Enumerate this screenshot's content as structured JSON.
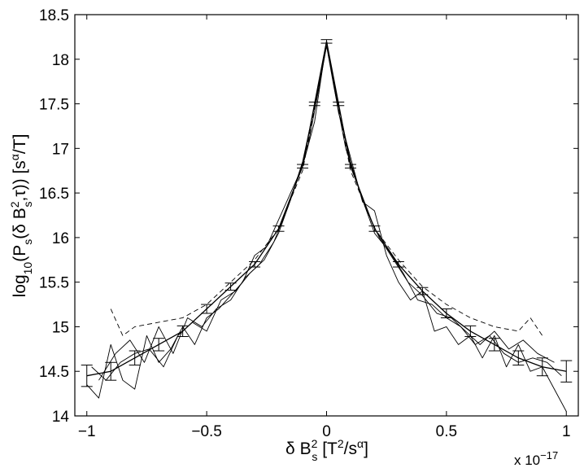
{
  "chart_data": {
    "type": "line",
    "title": "",
    "xlabel": "δ B_s^2 [T^2/s^α]",
    "ylabel": "log10(P_s(δ B_s^2, τ)) [s^α/T]",
    "x_scale_label": "x 10^-17",
    "x_scale_factor": 1e-17,
    "xlim": [
      -1.05,
      1.05
    ],
    "ylim": [
      14,
      18.5
    ],
    "grid": false,
    "legend": "none",
    "xticks": [
      -1,
      -0.5,
      0,
      0.5,
      1
    ],
    "xtick_labels": [
      "−1",
      "−0.5",
      "0",
      "0.5",
      "1"
    ],
    "yticks": [
      14,
      14.5,
      15,
      15.5,
      16,
      16.5,
      17,
      17.5,
      18,
      18.5
    ],
    "ytick_labels": [
      "14",
      "14.5",
      "15",
      "15.5",
      "16",
      "16.5",
      "17",
      "17.5",
      "18",
      "18.5"
    ],
    "series": [
      {
        "style": "solid-errorbar",
        "x": [
          -1.0,
          -0.9,
          -0.8,
          -0.7,
          -0.6,
          -0.5,
          -0.4,
          -0.3,
          -0.2,
          -0.1,
          -0.05,
          0.0,
          0.05,
          0.1,
          0.2,
          0.3,
          0.4,
          0.5,
          0.6,
          0.7,
          0.8,
          0.9,
          1.0
        ],
        "y": [
          14.45,
          14.5,
          14.65,
          14.8,
          14.95,
          15.2,
          15.45,
          15.7,
          16.1,
          16.8,
          17.5,
          18.2,
          17.5,
          16.8,
          16.1,
          15.7,
          15.4,
          15.15,
          14.95,
          14.8,
          14.65,
          14.55,
          14.5
        ],
        "err": [
          0.12,
          0.1,
          0.08,
          0.07,
          0.06,
          0.05,
          0.04,
          0.03,
          0.03,
          0.02,
          0.02,
          0.02,
          0.02,
          0.02,
          0.03,
          0.03,
          0.04,
          0.05,
          0.06,
          0.07,
          0.08,
          0.1,
          0.12
        ]
      },
      {
        "style": "solid-noisy",
        "x": [
          -1.0,
          -0.95,
          -0.9,
          -0.85,
          -0.8,
          -0.75,
          -0.7,
          -0.65,
          -0.6,
          -0.55,
          -0.5,
          -0.45,
          -0.4,
          -0.35,
          -0.3,
          -0.25,
          -0.2,
          -0.15,
          -0.1,
          -0.05,
          0.0,
          0.05,
          0.1,
          0.15,
          0.2,
          0.25,
          0.3,
          0.35,
          0.4,
          0.45,
          0.5,
          0.55,
          0.6,
          0.65,
          0.7,
          0.75,
          0.8,
          0.85,
          0.9,
          0.95,
          1.0
        ],
        "y": [
          14.35,
          14.2,
          14.8,
          14.4,
          14.3,
          14.9,
          14.6,
          14.75,
          15.0,
          14.8,
          15.1,
          15.2,
          15.35,
          15.5,
          15.8,
          15.9,
          16.2,
          16.5,
          16.8,
          17.3,
          18.2,
          17.4,
          16.9,
          16.4,
          16.3,
          15.8,
          15.5,
          15.3,
          15.4,
          14.95,
          15.0,
          14.8,
          14.9,
          14.65,
          14.9,
          14.55,
          14.8,
          14.5,
          14.55,
          14.3,
          14.05
        ]
      },
      {
        "style": "solid-noisy",
        "x": [
          -0.98,
          -0.92,
          -0.86,
          -0.8,
          -0.74,
          -0.68,
          -0.62,
          -0.56,
          -0.5,
          -0.44,
          -0.38,
          -0.32,
          -0.26,
          -0.2,
          -0.14,
          -0.08,
          -0.03,
          0.0,
          0.03,
          0.08,
          0.14,
          0.2,
          0.26,
          0.32,
          0.38,
          0.44,
          0.5,
          0.56,
          0.62,
          0.68,
          0.74,
          0.8,
          0.86,
          0.92,
          0.98
        ],
        "y": [
          14.55,
          14.4,
          14.6,
          14.7,
          14.75,
          14.55,
          14.9,
          15.05,
          14.95,
          15.3,
          15.4,
          15.6,
          15.75,
          16.05,
          16.5,
          17.0,
          17.7,
          18.15,
          17.7,
          17.0,
          16.5,
          16.05,
          15.85,
          15.6,
          15.3,
          15.25,
          15.1,
          15.0,
          14.8,
          14.9,
          14.7,
          14.6,
          14.65,
          14.6,
          14.45
        ]
      },
      {
        "style": "dashed",
        "x": [
          -0.9,
          -0.85,
          -0.8,
          -0.7,
          -0.6,
          -0.5,
          -0.4,
          -0.3,
          -0.2,
          -0.1,
          0.0,
          0.1,
          0.2,
          0.3,
          0.4,
          0.5,
          0.6,
          0.7,
          0.8,
          0.85,
          0.9
        ],
        "y": [
          15.2,
          14.9,
          15.0,
          15.05,
          15.1,
          15.25,
          15.5,
          15.75,
          16.1,
          16.75,
          18.15,
          16.75,
          16.1,
          15.75,
          15.45,
          15.25,
          15.1,
          15.0,
          14.95,
          15.1,
          14.9
        ]
      },
      {
        "style": "solid-thin",
        "x": [
          -0.95,
          -0.88,
          -0.82,
          -0.76,
          -0.7,
          -0.64,
          -0.58,
          -0.52,
          -0.46,
          -0.4,
          -0.34,
          -0.28,
          -0.22,
          -0.16,
          -0.1,
          -0.04,
          0.0,
          0.04,
          0.1,
          0.16,
          0.22,
          0.28,
          0.34,
          0.4,
          0.46,
          0.52,
          0.58,
          0.64,
          0.7,
          0.76,
          0.82,
          0.88,
          0.95
        ],
        "y": [
          14.4,
          14.7,
          14.85,
          14.6,
          15.0,
          14.7,
          15.1,
          15.0,
          15.2,
          15.3,
          15.55,
          15.7,
          15.95,
          16.35,
          16.85,
          17.6,
          18.2,
          17.6,
          16.85,
          16.35,
          16.0,
          15.75,
          15.5,
          15.35,
          15.15,
          15.1,
          14.95,
          14.8,
          14.95,
          14.75,
          14.85,
          14.7,
          14.6
        ]
      }
    ]
  }
}
